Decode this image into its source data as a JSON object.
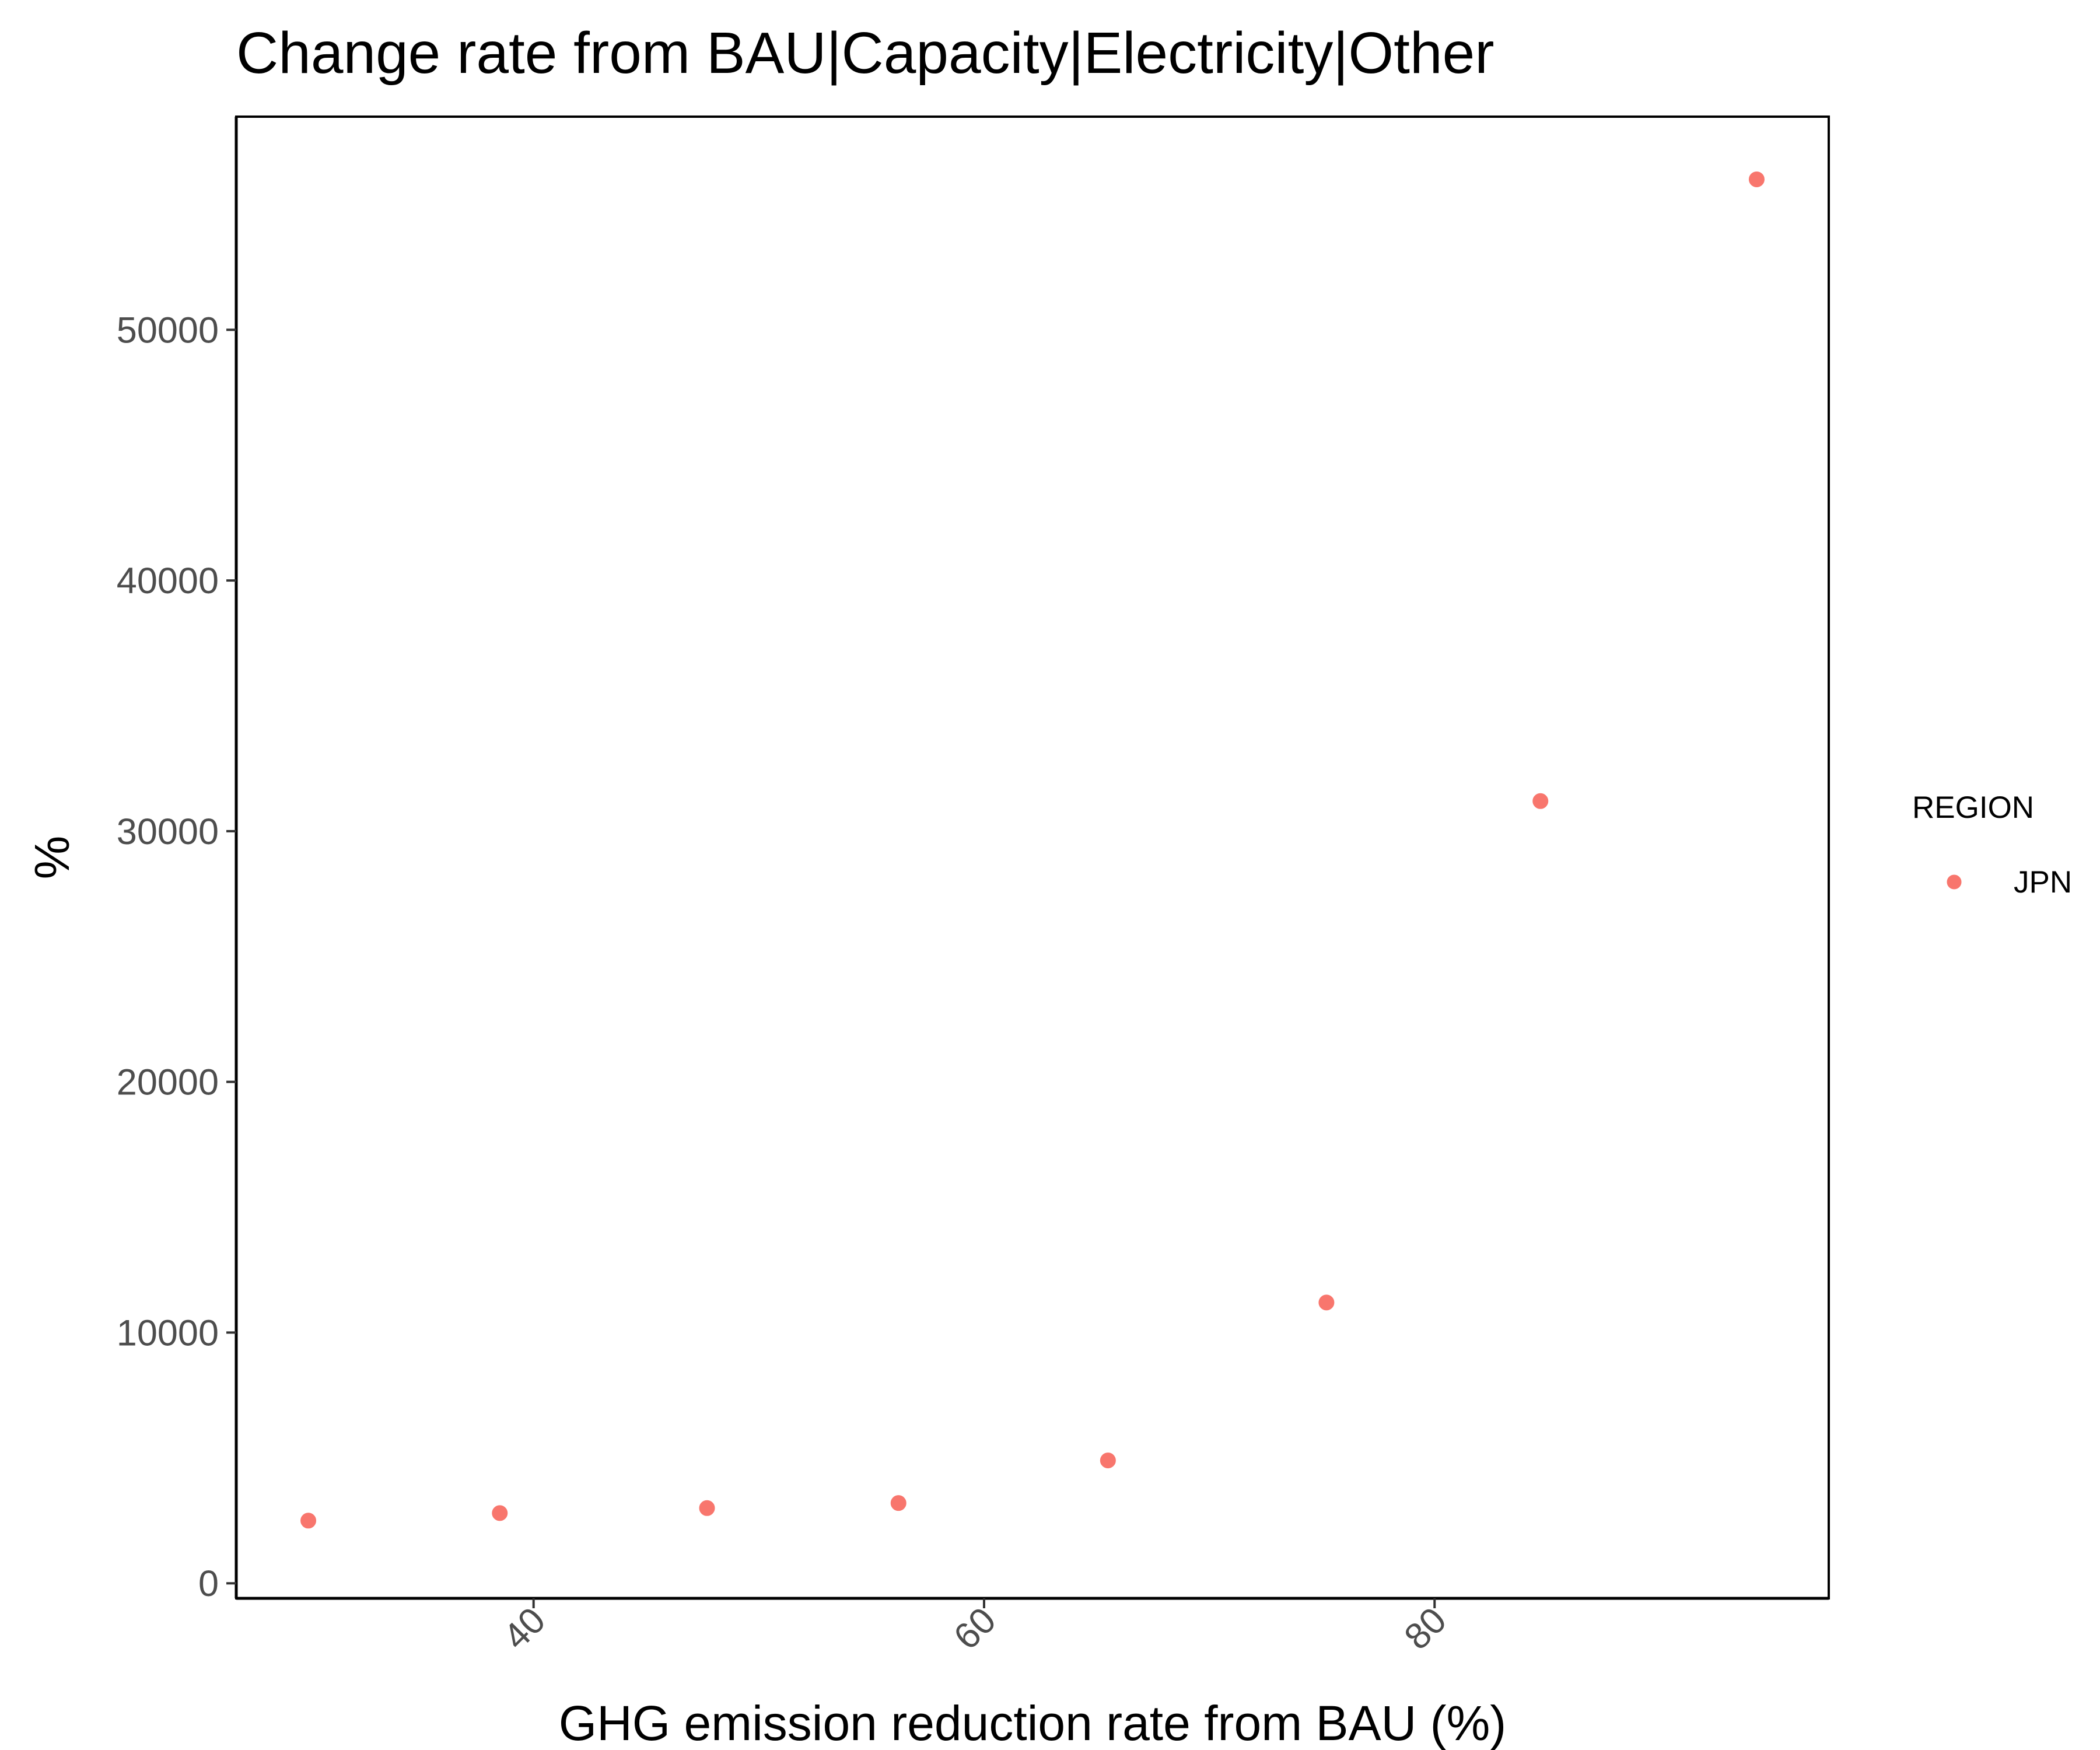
{
  "chart_data": {
    "type": "scatter",
    "title": "Change rate from BAU|Capacity|Electricity|Other",
    "xlabel": "GHG emission reduction rate from BAU (%)",
    "ylabel": "%",
    "xlim": [
      26.8,
      97.5
    ],
    "ylim": [
      -600,
      58500
    ],
    "x_ticks": [
      40,
      60,
      80
    ],
    "y_ticks": [
      0,
      10000,
      20000,
      30000,
      40000,
      50000
    ],
    "x_tick_labels": [
      "40",
      "60",
      "80"
    ],
    "y_tick_labels": [
      "0",
      "10000",
      "20000",
      "30000",
      "40000",
      "50000"
    ],
    "grid": false,
    "legend": {
      "title": "REGION",
      "position": "right",
      "entries": [
        {
          "label": "JPN",
          "color": "#F8766D"
        }
      ]
    },
    "series": [
      {
        "name": "JPN",
        "color": "#F8766D",
        "points": [
          {
            "x": 30.0,
            "y": 2500
          },
          {
            "x": 38.5,
            "y": 2800
          },
          {
            "x": 47.7,
            "y": 3000
          },
          {
            "x": 56.2,
            "y": 3200
          },
          {
            "x": 65.5,
            "y": 4900
          },
          {
            "x": 75.2,
            "y": 11200
          },
          {
            "x": 84.7,
            "y": 31200
          },
          {
            "x": 94.3,
            "y": 56000
          }
        ]
      }
    ]
  }
}
